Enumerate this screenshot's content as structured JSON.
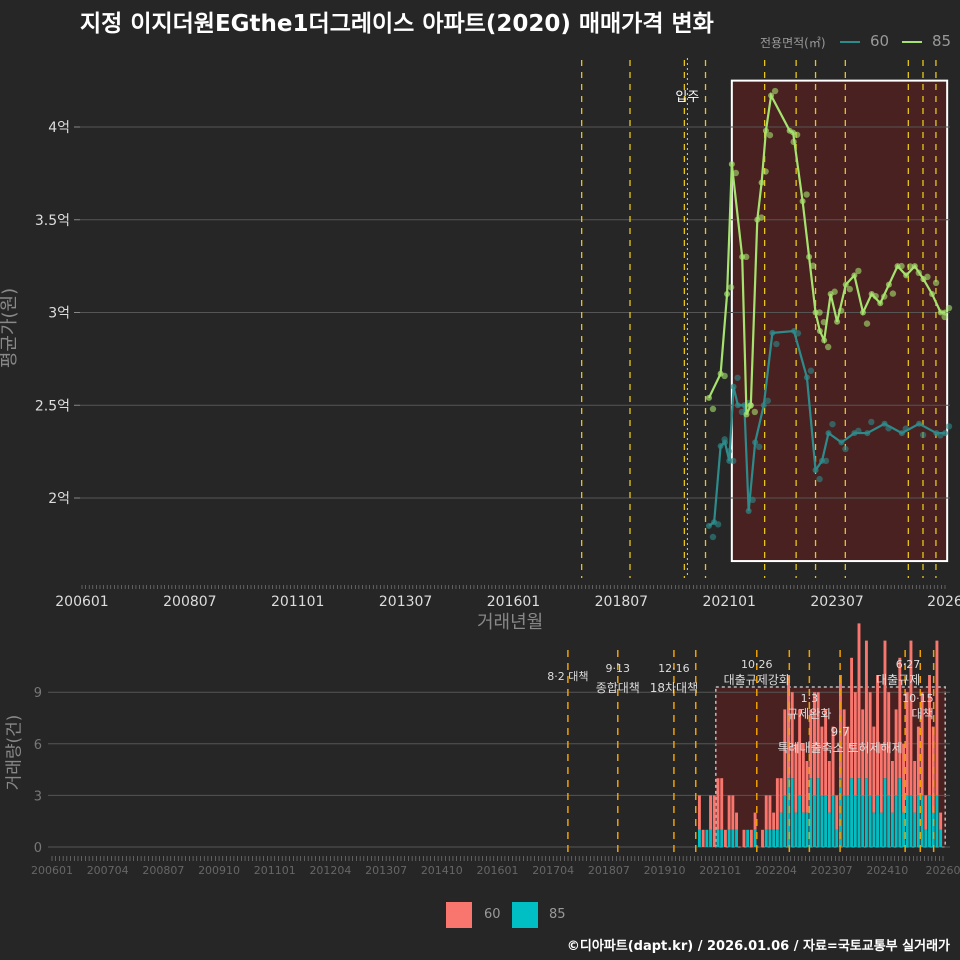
{
  "title": "지정 이지더원EGthe1더그레이스 아파트(2020) 매매가격 변화",
  "footer": "©디아파트(dapt.kr) / 2026.01.06 / 자료=국토교통부 실거래가",
  "colors": {
    "c60_line": "#2e8b8b",
    "c85_line": "#a6e36e",
    "bar60": "#f8766d",
    "bar85": "#00bfc4",
    "highlight": "#5a1f1f",
    "policy": "#e6c619"
  },
  "chart_data": [
    {
      "type": "line",
      "title": "지정 이지더원EGthe1더그레이스 아파트(2020) 매매가격 변화",
      "xlabel": "거래년월",
      "ylabel": "평균가(원)",
      "legend_title": "전용면적(㎡)",
      "legend_position": "top-right",
      "xlim": [
        2006,
        2026.1
      ],
      "ylim": [
        1.55,
        4.35
      ],
      "x_ticks": [
        {
          "v": 2006,
          "l": "200601"
        },
        {
          "v": 2008.5,
          "l": "200807"
        },
        {
          "v": 2011,
          "l": "201101"
        },
        {
          "v": 2013.5,
          "l": "201307"
        },
        {
          "v": 2016,
          "l": "201601"
        },
        {
          "v": 2018.5,
          "l": "201807"
        },
        {
          "v": 2021,
          "l": "202101"
        },
        {
          "v": 2023.5,
          "l": "202307"
        },
        {
          "v": 2026,
          "l": "2026"
        }
      ],
      "y_ticks": [
        {
          "v": 2,
          "l": "2억"
        },
        {
          "v": 2.5,
          "l": "2.5억"
        },
        {
          "v": 3,
          "l": "3억"
        },
        {
          "v": 3.5,
          "l": "3.5억"
        },
        {
          "v": 4,
          "l": "4억"
        }
      ],
      "annotation": {
        "x": 2020.03,
        "label": "입주"
      },
      "highlight": [
        2021.06,
        2026.05,
        1.66,
        4.25
      ],
      "series": [
        {
          "name": "60",
          "x": [
            2020.53,
            2020.65,
            2020.8,
            2020.9,
            2021.0,
            2021.1,
            2021.2,
            2021.35,
            2021.45,
            2021.6,
            2021.8,
            2022.0,
            2022.5,
            2022.8,
            2023.0,
            2023.15,
            2023.3,
            2023.6,
            2023.9,
            2024.2,
            2024.6,
            2025.0,
            2025.4,
            2025.8,
            2026.0
          ],
          "y": [
            1.85,
            1.87,
            2.28,
            2.3,
            2.2,
            2.6,
            2.5,
            2.5,
            1.93,
            2.3,
            2.5,
            2.89,
            2.9,
            2.65,
            2.15,
            2.2,
            2.35,
            2.3,
            2.35,
            2.35,
            2.4,
            2.35,
            2.4,
            2.35,
            2.35
          ]
        },
        {
          "name": "85",
          "x": [
            2020.53,
            2020.8,
            2020.95,
            2021.06,
            2021.3,
            2021.4,
            2021.5,
            2021.65,
            2021.75,
            2021.85,
            2021.97,
            2022.4,
            2022.48,
            2022.7,
            2022.85,
            2023.0,
            2023.1,
            2023.2,
            2023.35,
            2023.5,
            2023.7,
            2023.9,
            2024.1,
            2024.3,
            2024.5,
            2024.7,
            2024.9,
            2025.1,
            2025.3,
            2025.5,
            2025.7,
            2025.9,
            2026.0
          ],
          "y": [
            2.54,
            2.67,
            3.1,
            3.8,
            3.3,
            2.45,
            2.5,
            3.5,
            3.7,
            3.98,
            4.17,
            3.98,
            3.97,
            3.6,
            3.3,
            3.0,
            2.9,
            2.85,
            3.1,
            2.95,
            3.15,
            3.2,
            3.0,
            3.1,
            3.05,
            3.15,
            3.25,
            3.2,
            3.25,
            3.18,
            3.1,
            3.0,
            3.0
          ]
        }
      ]
    },
    {
      "type": "bar",
      "ylabel": "거래량(건)",
      "xlim": [
        2006,
        2026.05
      ],
      "ylim": [
        0,
        11
      ],
      "x_ticks": [
        "200601",
        "200704",
        "200807",
        "200910",
        "201101",
        "201204",
        "201307",
        "201410",
        "201601",
        "201704",
        "201807",
        "201910",
        "202101",
        "202204",
        "202307",
        "202410",
        "20260"
      ],
      "y_ticks": [
        0,
        3,
        6,
        9
      ],
      "start": 2020.5,
      "step": 0.0833,
      "series": [
        {
          "name": "60",
          "values": [
            2,
            1,
            0,
            2,
            3,
            3,
            3,
            1,
            2,
            2,
            1,
            0,
            1,
            0,
            1,
            1,
            0,
            1,
            2,
            2,
            1,
            3,
            2,
            5,
            6,
            5,
            4,
            5,
            4,
            3,
            4,
            6,
            5,
            4,
            5,
            3,
            4,
            2,
            6,
            5,
            4,
            7,
            6,
            9,
            5,
            8,
            6,
            5,
            7,
            4,
            8,
            6,
            3,
            5,
            7,
            4,
            6,
            9,
            3,
            4,
            6,
            2,
            7,
            5,
            9,
            1
          ]
        },
        {
          "name": "85",
          "values": [
            1,
            0,
            1,
            1,
            0,
            1,
            1,
            0,
            1,
            1,
            1,
            0,
            0,
            1,
            0,
            1,
            0,
            0,
            1,
            1,
            1,
            1,
            2,
            3,
            4,
            4,
            2,
            3,
            2,
            2,
            4,
            3,
            4,
            3,
            3,
            2,
            3,
            1,
            4,
            3,
            3,
            4,
            3,
            4,
            3,
            4,
            3,
            2,
            3,
            2,
            4,
            3,
            2,
            3,
            4,
            2,
            3,
            3,
            2,
            3,
            3,
            1,
            3,
            2,
            3,
            1
          ]
        }
      ],
      "highlight": [
        2020.9,
        2026.05,
        0,
        9.3
      ],
      "events": [
        {
          "x": 2017.58,
          "date": "8·2 대책",
          "label": ""
        },
        {
          "x": 2018.7,
          "date": "9·13",
          "label": "종합대책"
        },
        {
          "x": 2019.96,
          "date": "12·16",
          "label": "18차대책"
        },
        {
          "x": 2020.45,
          "date": "",
          "label": ""
        },
        {
          "x": 2021.82,
          "date": "10·26",
          "label": "대출규제강화"
        },
        {
          "x": 2022.55,
          "date": "",
          "label": ""
        },
        {
          "x": 2023.0,
          "date": "1·3",
          "label": "규제완화"
        },
        {
          "x": 2023.69,
          "date": "",
          "label": "9·7",
          "label2": "특례대출축소 토허제해제"
        },
        {
          "x": 2025.15,
          "date": "",
          "label": ""
        },
        {
          "x": 2025.49,
          "date": "6·27",
          "label": "대출규제"
        },
        {
          "x": 2025.79,
          "date": "10·15",
          "label": "대책"
        }
      ]
    }
  ]
}
